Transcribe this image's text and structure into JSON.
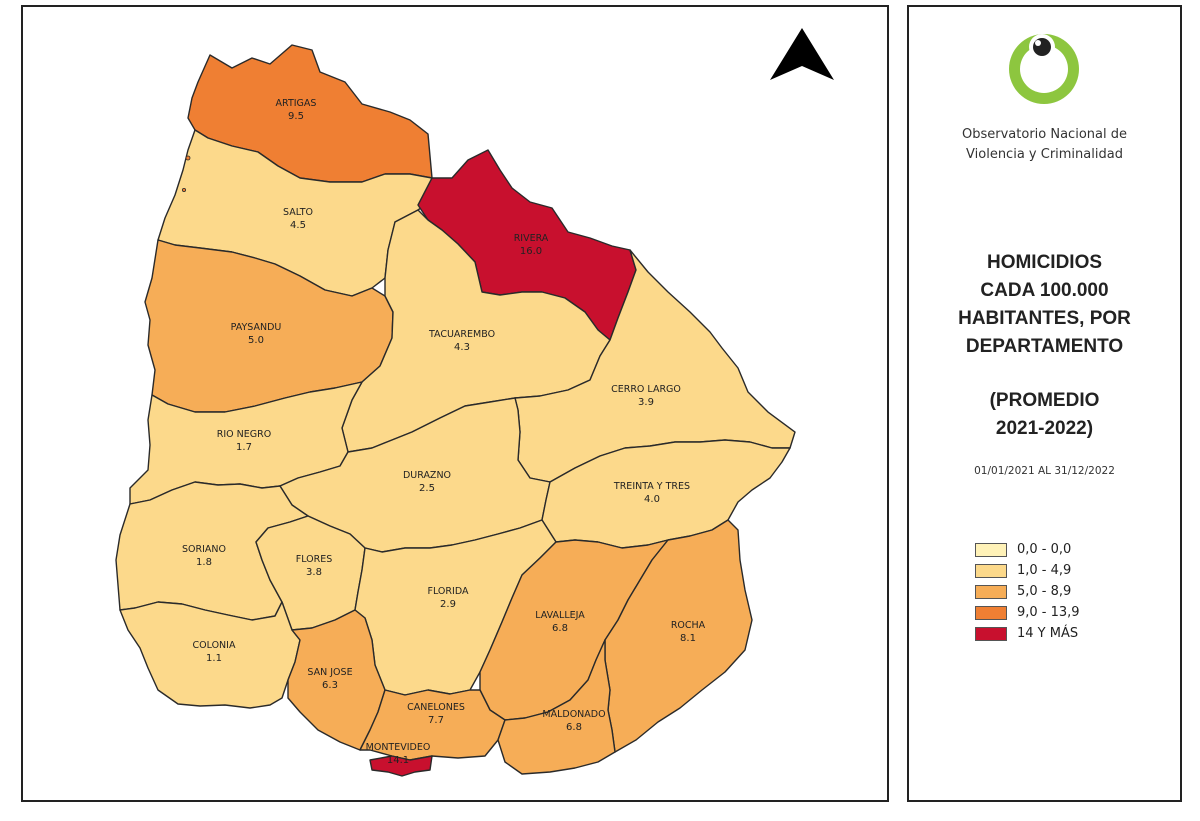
{
  "organization": {
    "name_line1": "Observatorio Nacional de",
    "name_line2": "Violencia y Criminalidad",
    "logo_icon": "green-eye-logo-icon"
  },
  "title": {
    "line1": "HOMICIDIOS",
    "line2": "CADA 100.000",
    "line3": "HABITANTES, POR",
    "line4": "DEPARTAMENTO"
  },
  "subtitle": {
    "line1": "(PROMEDIO",
    "line2": "2021-2022)"
  },
  "date_range": "01/01/2021 AL 31/12/2022",
  "north_arrow_icon": "north-arrow-icon",
  "legend": [
    {
      "label": "0,0 - 0,0",
      "color": "#fff2b8"
    },
    {
      "label": "1,0 - 4,9",
      "color": "#fcd98b"
    },
    {
      "label": "5,0 - 8,9",
      "color": "#f6ad57"
    },
    {
      "label": "9,0 - 13,9",
      "color": "#ef7f33"
    },
    {
      "label": "14 Y MÁS",
      "color": "#c8102e"
    }
  ],
  "departments": [
    {
      "id": "artigas",
      "name": "ARTIGAS",
      "value": "9.5",
      "color": "#ef7f33"
    },
    {
      "id": "salto",
      "name": "SALTO",
      "value": "4.5",
      "color": "#fcd98b"
    },
    {
      "id": "rivera",
      "name": "RIVERA",
      "value": "16.0",
      "color": "#c8102e"
    },
    {
      "id": "paysandu",
      "name": "PAYSANDU",
      "value": "5.0",
      "color": "#f6ad57"
    },
    {
      "id": "tacuarembo",
      "name": "TACUAREMBO",
      "value": "4.3",
      "color": "#fcd98b"
    },
    {
      "id": "cerro-largo",
      "name": "CERRO LARGO",
      "value": "3.9",
      "color": "#fcd98b"
    },
    {
      "id": "rio-negro",
      "name": "RIO NEGRO",
      "value": "1.7",
      "color": "#fcd98b"
    },
    {
      "id": "durazno",
      "name": "DURAZNO",
      "value": "2.5",
      "color": "#fcd98b"
    },
    {
      "id": "treinta-y-tres",
      "name": "TREINTA Y TRES",
      "value": "4.0",
      "color": "#fcd98b"
    },
    {
      "id": "soriano",
      "name": "SORIANO",
      "value": "1.8",
      "color": "#fcd98b"
    },
    {
      "id": "flores",
      "name": "FLORES",
      "value": "3.8",
      "color": "#fcd98b"
    },
    {
      "id": "florida",
      "name": "FLORIDA",
      "value": "2.9",
      "color": "#fcd98b"
    },
    {
      "id": "lavalleja",
      "name": "LAVALLEJA",
      "value": "6.8",
      "color": "#f6ad57"
    },
    {
      "id": "rocha",
      "name": "ROCHA",
      "value": "8.1",
      "color": "#f6ad57"
    },
    {
      "id": "colonia",
      "name": "COLONIA",
      "value": "1.1",
      "color": "#fcd98b"
    },
    {
      "id": "san-jose",
      "name": "SAN JOSE",
      "value": "6.3",
      "color": "#f6ad57"
    },
    {
      "id": "canelones",
      "name": "CANELONES",
      "value": "7.7",
      "color": "#f6ad57"
    },
    {
      "id": "maldonado",
      "name": "MALDONADO",
      "value": "6.8",
      "color": "#f6ad57"
    },
    {
      "id": "montevideo",
      "name": "MONTEVIDEO",
      "value": "14.1",
      "color": "#c8102e"
    }
  ]
}
